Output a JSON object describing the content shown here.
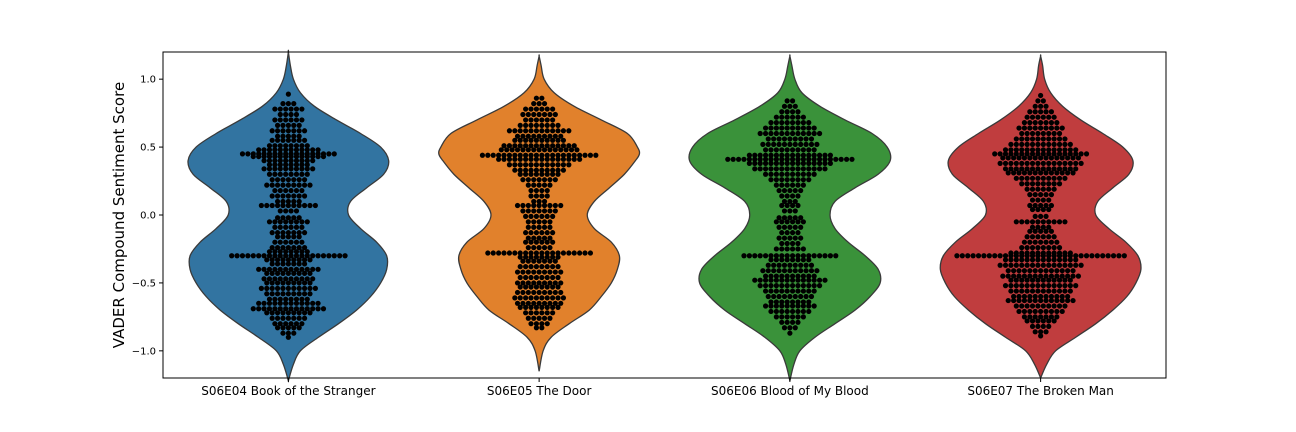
{
  "chart_data": {
    "type": "violin",
    "overlay": "swarm",
    "ylabel": "VADER Compound Sentiment Score",
    "xlabel": "",
    "ylim": [
      -1.2,
      1.2
    ],
    "yticks": [
      -1.0,
      -0.5,
      0.0,
      0.5,
      1.0
    ],
    "ytick_labels": [
      "−1.0",
      "−0.5",
      "0.0",
      "0.5",
      "1.0"
    ],
    "categories": [
      "S06E04 Book of the Stranger",
      "S06E05 The Door",
      "S06E06 Blood of My Blood",
      "S06E07 The Broken Man"
    ],
    "colors": [
      "#3274a1",
      "#e1812c",
      "#3a923a",
      "#c03d3e"
    ],
    "point_color": "#000000",
    "series": [
      {
        "violin_extent": [
          -1.22,
          1.2
        ],
        "density": [
          [
            -1.22,
            0.0
          ],
          [
            -1.1,
            0.05
          ],
          [
            -1.0,
            0.12
          ],
          [
            -0.9,
            0.3
          ],
          [
            -0.8,
            0.5
          ],
          [
            -0.7,
            0.68
          ],
          [
            -0.6,
            0.82
          ],
          [
            -0.5,
            0.92
          ],
          [
            -0.4,
            0.98
          ],
          [
            -0.3,
            0.98
          ],
          [
            -0.2,
            0.88
          ],
          [
            -0.1,
            0.72
          ],
          [
            0.0,
            0.6
          ],
          [
            0.1,
            0.62
          ],
          [
            0.2,
            0.78
          ],
          [
            0.3,
            0.95
          ],
          [
            0.4,
            1.0
          ],
          [
            0.5,
            0.92
          ],
          [
            0.6,
            0.72
          ],
          [
            0.7,
            0.48
          ],
          [
            0.8,
            0.26
          ],
          [
            0.9,
            0.12
          ],
          [
            1.0,
            0.05
          ],
          [
            1.1,
            0.02
          ],
          [
            1.2,
            0.0
          ]
        ],
        "points": [
          [
            0.89,
            1
          ],
          [
            0.82,
            3
          ],
          [
            0.78,
            6
          ],
          [
            0.74,
            4
          ],
          [
            0.7,
            6
          ],
          [
            0.66,
            5
          ],
          [
            0.62,
            7
          ],
          [
            0.58,
            5
          ],
          [
            0.55,
            7
          ],
          [
            0.51,
            8
          ],
          [
            0.48,
            12
          ],
          [
            0.45,
            18
          ],
          [
            0.43,
            14
          ],
          [
            0.4,
            10
          ],
          [
            0.37,
            8
          ],
          [
            0.34,
            10
          ],
          [
            0.3,
            8
          ],
          [
            0.26,
            7
          ],
          [
            0.22,
            9
          ],
          [
            0.18,
            6
          ],
          [
            0.14,
            7
          ],
          [
            0.1,
            5
          ],
          [
            0.07,
            11
          ],
          [
            0.03,
            4
          ],
          [
            -0.02,
            5
          ],
          [
            -0.05,
            8
          ],
          [
            -0.09,
            6
          ],
          [
            -0.13,
            7
          ],
          [
            -0.16,
            5
          ],
          [
            -0.2,
            6
          ],
          [
            -0.24,
            7
          ],
          [
            -0.27,
            8
          ],
          [
            -0.3,
            22
          ],
          [
            -0.33,
            9
          ],
          [
            -0.36,
            7
          ],
          [
            -0.4,
            12
          ],
          [
            -0.43,
            9
          ],
          [
            -0.47,
            10
          ],
          [
            -0.5,
            9
          ],
          [
            -0.54,
            11
          ],
          [
            -0.58,
            9
          ],
          [
            -0.62,
            8
          ],
          [
            -0.65,
            12
          ],
          [
            -0.69,
            14
          ],
          [
            -0.72,
            9
          ],
          [
            -0.76,
            7
          ],
          [
            -0.8,
            6
          ],
          [
            -0.83,
            5
          ],
          [
            -0.87,
            3
          ],
          [
            -0.9,
            1
          ]
        ]
      },
      {
        "violin_extent": [
          -1.15,
          1.17
        ],
        "density": [
          [
            -1.15,
            0.0
          ],
          [
            -1.0,
            0.04
          ],
          [
            -0.9,
            0.12
          ],
          [
            -0.8,
            0.3
          ],
          [
            -0.7,
            0.5
          ],
          [
            -0.6,
            0.62
          ],
          [
            -0.5,
            0.72
          ],
          [
            -0.4,
            0.78
          ],
          [
            -0.3,
            0.8
          ],
          [
            -0.2,
            0.72
          ],
          [
            -0.1,
            0.55
          ],
          [
            0.0,
            0.48
          ],
          [
            0.1,
            0.55
          ],
          [
            0.2,
            0.7
          ],
          [
            0.3,
            0.85
          ],
          [
            0.4,
            0.96
          ],
          [
            0.45,
            1.0
          ],
          [
            0.5,
            0.98
          ],
          [
            0.6,
            0.88
          ],
          [
            0.7,
            0.62
          ],
          [
            0.8,
            0.35
          ],
          [
            0.9,
            0.15
          ],
          [
            1.0,
            0.05
          ],
          [
            1.1,
            0.02
          ],
          [
            1.17,
            0.0
          ]
        ],
        "points": [
          [
            0.86,
            2
          ],
          [
            0.82,
            3
          ],
          [
            0.78,
            6
          ],
          [
            0.74,
            7
          ],
          [
            0.7,
            6
          ],
          [
            0.66,
            8
          ],
          [
            0.62,
            12
          ],
          [
            0.58,
            9
          ],
          [
            0.55,
            10
          ],
          [
            0.51,
            14
          ],
          [
            0.48,
            15
          ],
          [
            0.44,
            22
          ],
          [
            0.41,
            16
          ],
          [
            0.37,
            12
          ],
          [
            0.33,
            10
          ],
          [
            0.3,
            8
          ],
          [
            0.26,
            7
          ],
          [
            0.22,
            5
          ],
          [
            0.18,
            4
          ],
          [
            0.14,
            4
          ],
          [
            0.1,
            3
          ],
          [
            0.07,
            9
          ],
          [
            0.03,
            7
          ],
          [
            -0.01,
            6
          ],
          [
            -0.05,
            5
          ],
          [
            -0.09,
            5
          ],
          [
            -0.13,
            6
          ],
          [
            -0.17,
            5
          ],
          [
            -0.2,
            6
          ],
          [
            -0.24,
            5
          ],
          [
            -0.28,
            20
          ],
          [
            -0.31,
            8
          ],
          [
            -0.34,
            7
          ],
          [
            -0.38,
            8
          ],
          [
            -0.42,
            9
          ],
          [
            -0.46,
            8
          ],
          [
            -0.5,
            9
          ],
          [
            -0.53,
            8
          ],
          [
            -0.57,
            9
          ],
          [
            -0.61,
            10
          ],
          [
            -0.65,
            9
          ],
          [
            -0.68,
            8
          ],
          [
            -0.72,
            6
          ],
          [
            -0.76,
            5
          ],
          [
            -0.8,
            4
          ],
          [
            -0.83,
            2
          ]
        ]
      },
      {
        "violin_extent": [
          -1.22,
          1.17
        ],
        "density": [
          [
            -1.22,
            0.0
          ],
          [
            -1.1,
            0.04
          ],
          [
            -1.0,
            0.1
          ],
          [
            -0.9,
            0.25
          ],
          [
            -0.8,
            0.45
          ],
          [
            -0.7,
            0.65
          ],
          [
            -0.6,
            0.8
          ],
          [
            -0.5,
            0.9
          ],
          [
            -0.4,
            0.88
          ],
          [
            -0.3,
            0.75
          ],
          [
            -0.2,
            0.58
          ],
          [
            -0.1,
            0.45
          ],
          [
            0.0,
            0.4
          ],
          [
            0.1,
            0.45
          ],
          [
            0.2,
            0.65
          ],
          [
            0.3,
            0.88
          ],
          [
            0.4,
            1.0
          ],
          [
            0.5,
            0.97
          ],
          [
            0.6,
            0.82
          ],
          [
            0.7,
            0.55
          ],
          [
            0.8,
            0.3
          ],
          [
            0.9,
            0.12
          ],
          [
            1.0,
            0.05
          ],
          [
            1.1,
            0.02
          ],
          [
            1.17,
            0.0
          ]
        ],
        "points": [
          [
            0.84,
            2
          ],
          [
            0.8,
            3
          ],
          [
            0.76,
            4
          ],
          [
            0.72,
            6
          ],
          [
            0.68,
            8
          ],
          [
            0.64,
            10
          ],
          [
            0.6,
            12
          ],
          [
            0.56,
            9
          ],
          [
            0.52,
            11
          ],
          [
            0.48,
            10
          ],
          [
            0.44,
            16
          ],
          [
            0.41,
            24
          ],
          [
            0.38,
            16
          ],
          [
            0.34,
            14
          ],
          [
            0.3,
            10
          ],
          [
            0.26,
            8
          ],
          [
            0.22,
            6
          ],
          [
            0.18,
            5
          ],
          [
            0.14,
            4
          ],
          [
            0.1,
            3
          ],
          [
            0.07,
            4
          ],
          [
            0.03,
            3
          ],
          [
            -0.02,
            5
          ],
          [
            -0.05,
            6
          ],
          [
            -0.09,
            5
          ],
          [
            -0.13,
            4
          ],
          [
            -0.17,
            5
          ],
          [
            -0.21,
            4
          ],
          [
            -0.25,
            6
          ],
          [
            -0.3,
            18
          ],
          [
            -0.33,
            8
          ],
          [
            -0.37,
            9
          ],
          [
            -0.41,
            11
          ],
          [
            -0.45,
            10
          ],
          [
            -0.48,
            14
          ],
          [
            -0.52,
            12
          ],
          [
            -0.56,
            10
          ],
          [
            -0.6,
            9
          ],
          [
            -0.64,
            8
          ],
          [
            -0.67,
            10
          ],
          [
            -0.71,
            8
          ],
          [
            -0.75,
            6
          ],
          [
            -0.79,
            4
          ],
          [
            -0.83,
            3
          ],
          [
            -0.87,
            1
          ]
        ]
      },
      {
        "violin_extent": [
          -1.2,
          1.17
        ],
        "density": [
          [
            -1.2,
            0.0
          ],
          [
            -1.1,
            0.06
          ],
          [
            -1.0,
            0.15
          ],
          [
            -0.9,
            0.35
          ],
          [
            -0.8,
            0.55
          ],
          [
            -0.7,
            0.72
          ],
          [
            -0.6,
            0.86
          ],
          [
            -0.5,
            0.95
          ],
          [
            -0.4,
            1.0
          ],
          [
            -0.3,
            0.97
          ],
          [
            -0.2,
            0.85
          ],
          [
            -0.1,
            0.68
          ],
          [
            0.0,
            0.55
          ],
          [
            0.1,
            0.57
          ],
          [
            0.2,
            0.72
          ],
          [
            0.3,
            0.88
          ],
          [
            0.4,
            0.92
          ],
          [
            0.5,
            0.82
          ],
          [
            0.6,
            0.62
          ],
          [
            0.7,
            0.4
          ],
          [
            0.8,
            0.22
          ],
          [
            0.9,
            0.1
          ],
          [
            1.0,
            0.04
          ],
          [
            1.1,
            0.02
          ],
          [
            1.17,
            0.0
          ]
        ],
        "points": [
          [
            0.88,
            1
          ],
          [
            0.84,
            2
          ],
          [
            0.8,
            3
          ],
          [
            0.76,
            5
          ],
          [
            0.72,
            6
          ],
          [
            0.68,
            7
          ],
          [
            0.64,
            9
          ],
          [
            0.6,
            8
          ],
          [
            0.56,
            10
          ],
          [
            0.52,
            12
          ],
          [
            0.48,
            14
          ],
          [
            0.45,
            18
          ],
          [
            0.42,
            15
          ],
          [
            0.38,
            16
          ],
          [
            0.34,
            14
          ],
          [
            0.31,
            13
          ],
          [
            0.27,
            10
          ],
          [
            0.23,
            8
          ],
          [
            0.19,
            6
          ],
          [
            0.15,
            5
          ],
          [
            0.11,
            4
          ],
          [
            0.07,
            5
          ],
          [
            0.04,
            4
          ],
          [
            -0.01,
            3
          ],
          [
            -0.05,
            10
          ],
          [
            -0.09,
            4
          ],
          [
            -0.12,
            5
          ],
          [
            -0.16,
            6
          ],
          [
            -0.2,
            7
          ],
          [
            -0.24,
            8
          ],
          [
            -0.28,
            12
          ],
          [
            -0.3,
            32
          ],
          [
            -0.33,
            14
          ],
          [
            -0.37,
            16
          ],
          [
            -0.41,
            13
          ],
          [
            -0.45,
            15
          ],
          [
            -0.48,
            12
          ],
          [
            -0.52,
            14
          ],
          [
            -0.56,
            12
          ],
          [
            -0.6,
            11
          ],
          [
            -0.63,
            13
          ],
          [
            -0.67,
            10
          ],
          [
            -0.71,
            9
          ],
          [
            -0.75,
            7
          ],
          [
            -0.78,
            6
          ],
          [
            -0.82,
            4
          ],
          [
            -0.86,
            3
          ],
          [
            -0.89,
            1
          ]
        ]
      }
    ]
  }
}
